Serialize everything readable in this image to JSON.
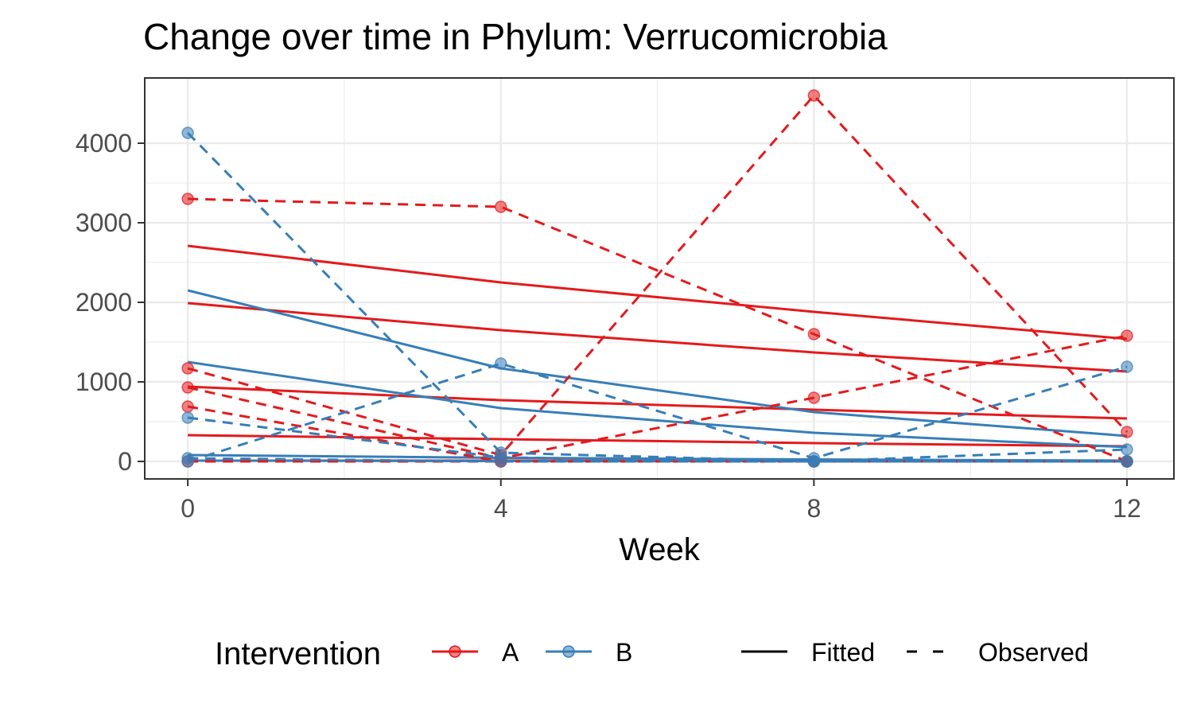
{
  "chart_data": {
    "type": "line",
    "title": "Change over time in Phylum: Verrucomicrobia",
    "xlabel": "Week",
    "ylabel": "",
    "x_ticks": [
      0,
      4,
      8,
      12
    ],
    "y_ticks": [
      0,
      1000,
      2000,
      3000,
      4000
    ],
    "xlim": [
      -0.55,
      12.6
    ],
    "ylim": [
      -220,
      4820
    ],
    "grid": true,
    "legend": {
      "placement": "bottom",
      "color_title": "Intervention",
      "color_entries": [
        {
          "label": "A",
          "color": "#E41A1C"
        },
        {
          "label": "B",
          "color": "#377EB8"
        }
      ],
      "linetype_entries": [
        {
          "label": "Fitted",
          "dash": "solid"
        },
        {
          "label": "Observed",
          "dash": "dashed"
        }
      ]
    },
    "colors": {
      "A": "#E41A1C",
      "B": "#377EB8"
    },
    "observed": [
      {
        "group": "A",
        "x": [
          0,
          4,
          8,
          12
        ],
        "y": [
          3300,
          3200,
          1600,
          0
        ]
      },
      {
        "group": "A",
        "x": [
          0,
          4,
          8,
          12
        ],
        "y": [
          1170,
          80,
          4600,
          370
        ]
      },
      {
        "group": "A",
        "x": [
          0,
          4,
          8,
          12
        ],
        "y": [
          930,
          40,
          800,
          1580
        ]
      },
      {
        "group": "A",
        "x": [
          0,
          4,
          8,
          12
        ],
        "y": [
          690,
          0,
          0,
          0
        ]
      },
      {
        "group": "A",
        "x": [
          0,
          4,
          8,
          12
        ],
        "y": [
          0,
          0,
          0,
          0
        ]
      },
      {
        "group": "B",
        "x": [
          0,
          4,
          8,
          12
        ],
        "y": [
          4130,
          110,
          0,
          0
        ]
      },
      {
        "group": "B",
        "x": [
          0,
          4,
          8,
          12
        ],
        "y": [
          0,
          1230,
          40,
          1190
        ]
      },
      {
        "group": "B",
        "x": [
          0,
          4,
          8,
          12
        ],
        "y": [
          550,
          50,
          0,
          150
        ]
      },
      {
        "group": "B",
        "x": [
          0,
          4,
          8,
          12
        ],
        "y": [
          40,
          0,
          0,
          0
        ]
      }
    ],
    "fitted": [
      {
        "group": "A",
        "x": [
          0,
          4,
          8,
          12
        ],
        "y": [
          2710,
          2250,
          1880,
          1540
        ]
      },
      {
        "group": "A",
        "x": [
          0,
          4,
          8,
          12
        ],
        "y": [
          1990,
          1650,
          1370,
          1130
        ]
      },
      {
        "group": "A",
        "x": [
          0,
          4,
          8,
          12
        ],
        "y": [
          940,
          770,
          650,
          540
        ]
      },
      {
        "group": "A",
        "x": [
          0,
          4,
          8,
          12
        ],
        "y": [
          330,
          280,
          230,
          190
        ]
      },
      {
        "group": "A",
        "x": [
          0,
          4,
          8,
          12
        ],
        "y": [
          10,
          10,
          5,
          5
        ]
      },
      {
        "group": "B",
        "x": [
          0,
          4,
          8,
          12
        ],
        "y": [
          2150,
          1170,
          620,
          320
        ]
      },
      {
        "group": "B",
        "x": [
          0,
          4,
          8,
          12
        ],
        "y": [
          1250,
          670,
          360,
          180
        ]
      },
      {
        "group": "B",
        "x": [
          0,
          4,
          8,
          12
        ],
        "y": [
          80,
          45,
          25,
          10
        ]
      },
      {
        "group": "B",
        "x": [
          0,
          4,
          8,
          12
        ],
        "y": [
          10,
          5,
          3,
          1
        ]
      }
    ]
  }
}
